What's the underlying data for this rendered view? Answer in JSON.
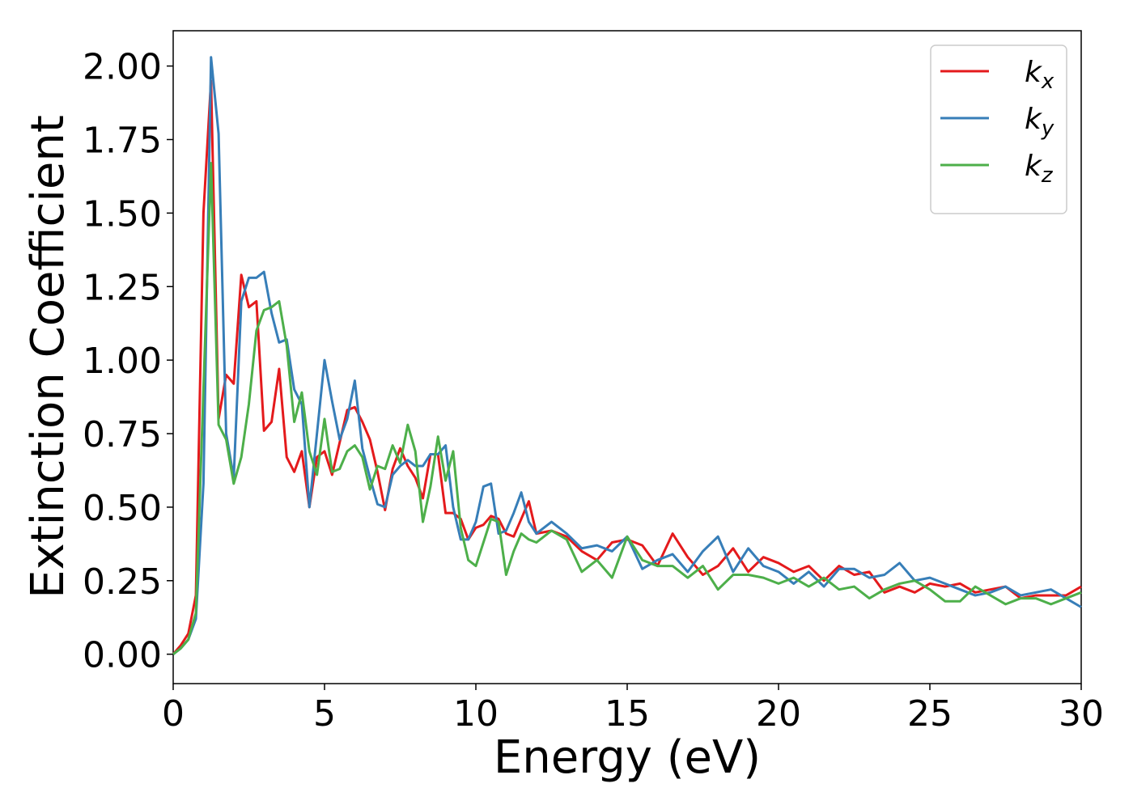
{
  "chart_data": {
    "type": "line",
    "xlabel": "Energy (eV)",
    "ylabel": "Extinction Coefficient",
    "x": [
      0,
      0.25,
      0.5,
      0.75,
      1,
      1.25,
      1.5,
      1.75,
      2,
      2.25,
      2.5,
      2.75,
      3,
      3.25,
      3.5,
      3.75,
      4,
      4.25,
      4.5,
      4.75,
      5,
      5.25,
      5.5,
      5.75,
      6,
      6.25,
      6.5,
      6.75,
      7,
      7.25,
      7.5,
      7.75,
      8,
      8.25,
      8.5,
      8.75,
      9,
      9.25,
      9.5,
      9.75,
      10,
      10.25,
      10.5,
      10.75,
      11,
      11.25,
      11.5,
      11.75,
      12,
      12.5,
      13,
      13.5,
      14,
      14.5,
      15,
      15.5,
      16,
      16.5,
      17,
      17.5,
      18,
      18.5,
      19,
      19.5,
      20,
      20.5,
      21,
      21.5,
      22,
      22.5,
      23,
      23.5,
      24,
      24.5,
      25,
      25.5,
      26,
      26.5,
      27,
      27.5,
      28,
      28.5,
      29,
      29.5,
      30
    ],
    "series": [
      {
        "name": "kx",
        "color": "#e41a1c",
        "values": [
          0,
          0.03,
          0.07,
          0.2,
          1.5,
          1.95,
          0.8,
          0.95,
          0.92,
          1.29,
          1.18,
          1.2,
          0.76,
          0.79,
          0.97,
          0.67,
          0.62,
          0.69,
          0.5,
          0.67,
          0.69,
          0.61,
          0.72,
          0.83,
          0.84,
          0.79,
          0.73,
          0.62,
          0.49,
          0.63,
          0.7,
          0.64,
          0.6,
          0.53,
          0.68,
          0.68,
          0.48,
          0.48,
          0.46,
          0.39,
          0.43,
          0.44,
          0.47,
          0.46,
          0.41,
          0.4,
          0.46,
          0.52,
          0.41,
          0.42,
          0.4,
          0.35,
          0.32,
          0.38,
          0.39,
          0.37,
          0.3,
          0.41,
          0.33,
          0.27,
          0.3,
          0.36,
          0.28,
          0.33,
          0.31,
          0.28,
          0.3,
          0.25,
          0.3,
          0.27,
          0.28,
          0.21,
          0.23,
          0.21,
          0.24,
          0.23,
          0.24,
          0.21,
          0.22,
          0.23,
          0.19,
          0.2,
          0.2,
          0.2,
          0.23
        ]
      },
      {
        "name": "ky",
        "color": "#377eb8",
        "values": [
          0,
          0.02,
          0.05,
          0.12,
          0.58,
          2.03,
          1.77,
          0.75,
          0.6,
          1.2,
          1.28,
          1.28,
          1.3,
          1.16,
          1.06,
          1.07,
          0.9,
          0.85,
          0.5,
          0.75,
          1.0,
          0.86,
          0.73,
          0.8,
          0.93,
          0.7,
          0.6,
          0.51,
          0.5,
          0.61,
          0.64,
          0.66,
          0.64,
          0.64,
          0.68,
          0.68,
          0.71,
          0.5,
          0.39,
          0.39,
          0.45,
          0.57,
          0.58,
          0.41,
          0.42,
          0.48,
          0.55,
          0.45,
          0.41,
          0.45,
          0.41,
          0.36,
          0.37,
          0.35,
          0.4,
          0.29,
          0.32,
          0.34,
          0.28,
          0.35,
          0.4,
          0.28,
          0.36,
          0.3,
          0.28,
          0.24,
          0.28,
          0.23,
          0.29,
          0.29,
          0.26,
          0.27,
          0.31,
          0.25,
          0.26,
          0.24,
          0.22,
          0.2,
          0.21,
          0.23,
          0.2,
          0.21,
          0.22,
          0.19,
          0.16
        ]
      },
      {
        "name": "kz",
        "color": "#4daf4a",
        "values": [
          0,
          0.02,
          0.05,
          0.14,
          0.9,
          1.67,
          0.78,
          0.73,
          0.58,
          0.67,
          0.85,
          1.1,
          1.17,
          1.18,
          1.2,
          1.05,
          0.79,
          0.89,
          0.69,
          0.61,
          0.8,
          0.62,
          0.63,
          0.69,
          0.71,
          0.67,
          0.56,
          0.64,
          0.63,
          0.71,
          0.65,
          0.78,
          0.69,
          0.45,
          0.57,
          0.74,
          0.59,
          0.69,
          0.43,
          0.32,
          0.3,
          0.38,
          0.46,
          0.45,
          0.27,
          0.35,
          0.41,
          0.39,
          0.38,
          0.42,
          0.39,
          0.28,
          0.32,
          0.26,
          0.4,
          0.32,
          0.3,
          0.3,
          0.26,
          0.3,
          0.22,
          0.27,
          0.27,
          0.26,
          0.24,
          0.26,
          0.23,
          0.26,
          0.22,
          0.23,
          0.19,
          0.22,
          0.24,
          0.25,
          0.22,
          0.18,
          0.18,
          0.23,
          0.2,
          0.17,
          0.19,
          0.19,
          0.17,
          0.19,
          0.21
        ]
      }
    ],
    "xlim": [
      0,
      30
    ],
    "xticks": [
      0,
      5,
      10,
      15,
      20,
      25,
      30
    ],
    "ylim": [
      -0.1,
      2.12
    ],
    "yticks": [
      {
        "value": 0,
        "label": "0.00"
      },
      {
        "value": 0.25,
        "label": "0.25"
      },
      {
        "value": 0.5,
        "label": "0.50"
      },
      {
        "value": 0.75,
        "label": "0.75"
      },
      {
        "value": 1,
        "label": "1.00"
      },
      {
        "value": 1.25,
        "label": "1.25"
      },
      {
        "value": 1.5,
        "label": "1.50"
      },
      {
        "value": 1.75,
        "label": "1.75"
      },
      {
        "value": 2,
        "label": "2.00"
      }
    ],
    "grid": false,
    "legend": "upper right"
  }
}
